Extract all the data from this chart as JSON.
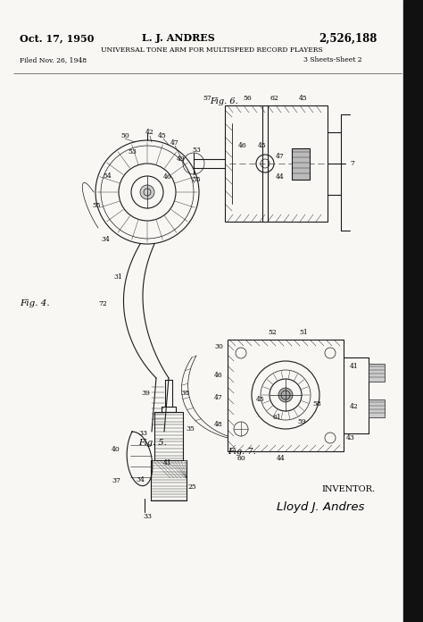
{
  "bg_color": "#f8f7f4",
  "line_color": "#1a1a1a",
  "black_bar_color": "#111111",
  "title_date": "Oct. 17, 1950",
  "title_name": "L. J. ANDRES",
  "title_patent": "2,526,188",
  "title_desc": "UNIVERSAL TONE ARM FOR MULTISPEED RECORD PLAYERS",
  "title_filed": "Filed Nov. 26, 1948",
  "title_sheets": "3 Sheets-Sheet 2",
  "inventor_label": "INVENTOR.",
  "inventor_sig": "Lloyd J. Andres",
  "fig4_label": "Fig. 4.",
  "fig5_label": "Fig. 5.",
  "fig6_label": "Fig. 6.",
  "fig7_label": "Fig. 7."
}
